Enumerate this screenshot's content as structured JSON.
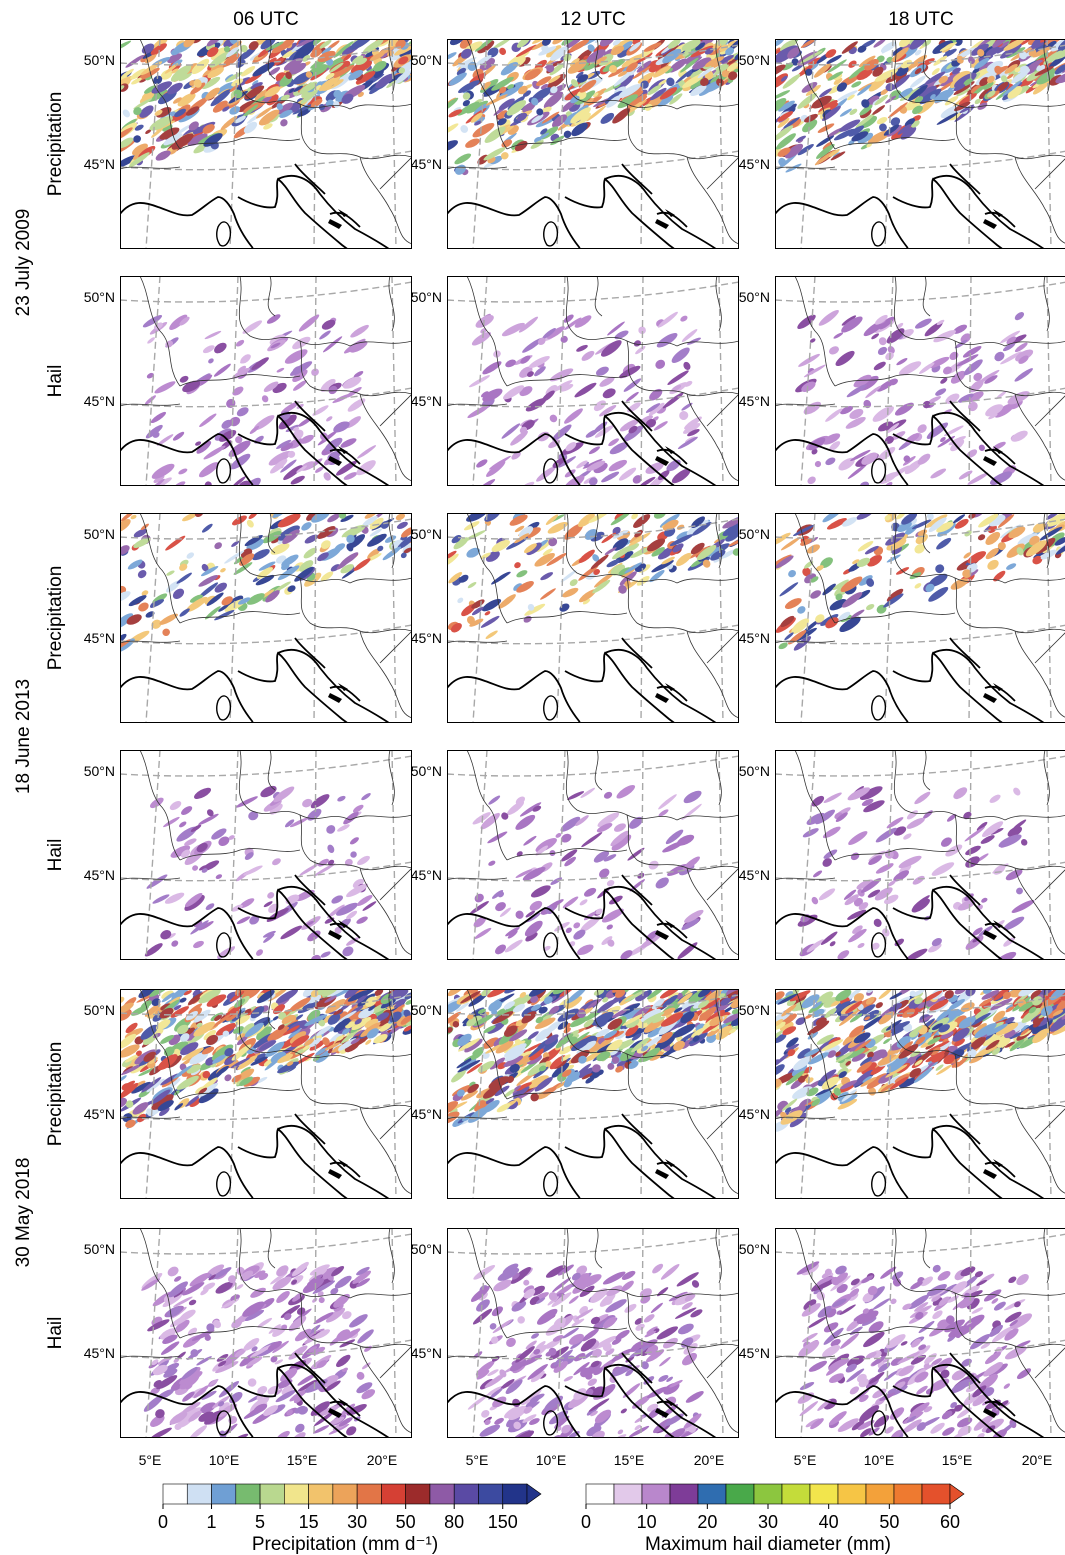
{
  "columns": [
    "06 UTC",
    "12 UTC",
    "18 UTC"
  ],
  "events": [
    {
      "date": "23 July 2009",
      "rows": [
        "Precipitation",
        "Hail"
      ]
    },
    {
      "date": "18 June 2013",
      "rows": [
        "Precipitation",
        "Hail"
      ]
    },
    {
      "date": "30 May 2018",
      "rows": [
        "Precipitation",
        "Hail"
      ]
    }
  ],
  "lat_labels": [
    "50°N",
    "45°N"
  ],
  "lon_labels": [
    "5°E",
    "10°E",
    "15°E",
    "20°E"
  ],
  "precip_legend": {
    "title": "Precipitation (mm d⁻¹)",
    "ticks": [
      "0",
      "1",
      "5",
      "15",
      "30",
      "50",
      "80",
      "150"
    ],
    "colors": [
      "#ffffff",
      "#cfe0f3",
      "#6f9fd4",
      "#77bb6f",
      "#b9d88f",
      "#f1e58c",
      "#f2c36c",
      "#eca35a",
      "#e27547",
      "#d54034",
      "#9c2b2b",
      "#8e5aa6",
      "#5a4aa4",
      "#3c4aa0",
      "#22348a"
    ]
  },
  "hail_legend": {
    "title": "Maximum hail diameter (mm)",
    "ticks": [
      "0",
      "10",
      "20",
      "30",
      "40",
      "50",
      "60"
    ],
    "colors": [
      "#ffffff",
      "#e2c9ea",
      "#b987cc",
      "#7e3c98",
      "#2f6db0",
      "#49a94a",
      "#8cc63f",
      "#c4dc3a",
      "#f2e54c",
      "#f6c545",
      "#f3a13a",
      "#ee7a30",
      "#e4512c"
    ]
  }
}
